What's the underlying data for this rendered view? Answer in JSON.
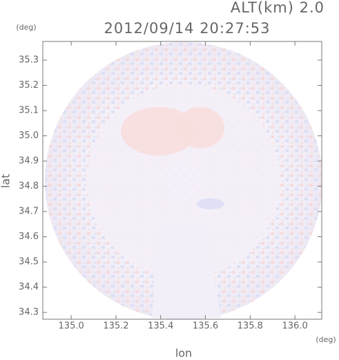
{
  "chart_data": {
    "type": "radar-map",
    "title": "2012/09/14 20:27:53",
    "altitude_label": "ALT(km) 2.0",
    "x_label": "lon",
    "y_label": "lat",
    "x_unit": "(deg)",
    "y_unit": "(deg)",
    "xlim": [
      134.873,
      136.12
    ],
    "xticks": [
      {
        "value": 135.0,
        "label": "135.0"
      },
      135.2,
      135.4,
      135.6,
      135.8,
      {
        "value": 136.0,
        "label": "136.0"
      }
    ],
    "ylim": [
      34.273,
      35.374
    ],
    "yticks": [
      34.3,
      34.4,
      34.5,
      34.6,
      34.7,
      34.8,
      34.9,
      {
        "value": 35.0,
        "label": "35.0"
      },
      35.1,
      35.2,
      35.3
    ]
  }
}
